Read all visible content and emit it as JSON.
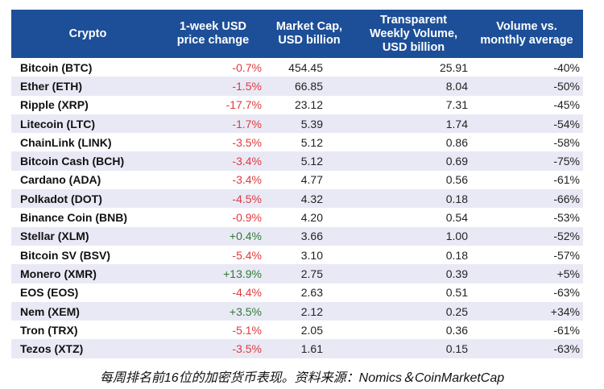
{
  "colors": {
    "header_bg": "#1d4f98",
    "row_alt": "#e9e9f6",
    "negative": "#e0393e",
    "positive": "#2f7a33"
  },
  "chart_data": {
    "type": "table",
    "columns": [
      "Crypto",
      "1-week USD price change",
      "Market Cap, USD billion",
      "Transparent Weekly Volume, USD billion",
      "Volume vs. monthly average"
    ],
    "rows": [
      [
        "Bitcoin (BTC)",
        "-0.7%",
        "454.45",
        "25.91",
        "-40%"
      ],
      [
        "Ether (ETH)",
        "-1.5%",
        "66.85",
        "8.04",
        "-50%"
      ],
      [
        "Ripple (XRP)",
        "-17.7%",
        "23.12",
        "7.31",
        "-45%"
      ],
      [
        "Litecoin (LTC)",
        "-1.7%",
        "5.39",
        "1.74",
        "-54%"
      ],
      [
        "ChainLink (LINK)",
        "-3.5%",
        "5.12",
        "0.86",
        "-58%"
      ],
      [
        "Bitcoin Cash (BCH)",
        "-3.4%",
        "5.12",
        "0.69",
        "-75%"
      ],
      [
        "Cardano (ADA)",
        "-3.4%",
        "4.77",
        "0.56",
        "-61%"
      ],
      [
        "Polkadot (DOT)",
        "-4.5%",
        "4.32",
        "0.18",
        "-66%"
      ],
      [
        "Binance Coin (BNB)",
        "-0.9%",
        "4.20",
        "0.54",
        "-53%"
      ],
      [
        "Stellar (XLM)",
        "+0.4%",
        "3.66",
        "1.00",
        "-52%"
      ],
      [
        "Bitcoin SV (BSV)",
        "-5.4%",
        "3.10",
        "0.18",
        "-57%"
      ],
      [
        "Monero (XMR)",
        "+13.9%",
        "2.75",
        "0.39",
        "+5%"
      ],
      [
        "EOS (EOS)",
        "-4.4%",
        "2.63",
        "0.51",
        "-63%"
      ],
      [
        "Nem (XEM)",
        "+3.5%",
        "2.12",
        "0.25",
        "+34%"
      ],
      [
        "Tron (TRX)",
        "-5.1%",
        "2.05",
        "0.36",
        "-61%"
      ],
      [
        "Tezos (XTZ)",
        "-3.5%",
        "1.61",
        "0.15",
        "-63%"
      ]
    ],
    "caption": "每周排名前16位的加密货币表现。资料来源：Nomics＆CoinMarketCap"
  }
}
